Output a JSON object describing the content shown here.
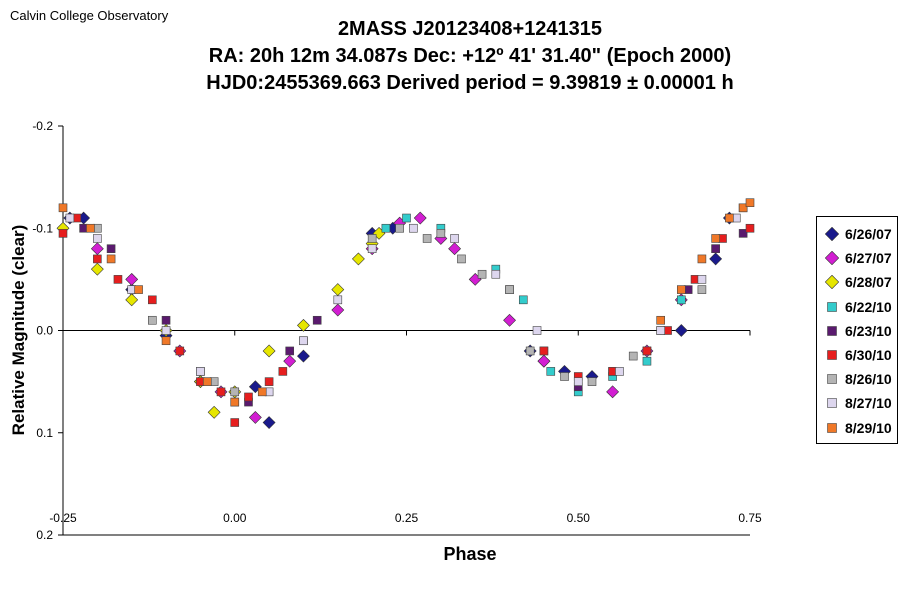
{
  "header": {
    "org": "Calvin College Observatory"
  },
  "chart_data": {
    "type": "scatter",
    "title": "2MASS J20123408+1241315",
    "subtitle_lines": [
      "RA: 20h 12m 34.087s   Dec: +12º 41' 31.40\"  (Epoch 2000)",
      "HJD0:2455369.663    Derived period =  9.39819 ± 0.00001 h"
    ],
    "xlabel": "Phase",
    "ylabel": "Relative Magnitude (clear)",
    "xlim": [
      -0.25,
      0.75
    ],
    "ylim": [
      -0.2,
      0.2
    ],
    "y_inverted": true,
    "x_ticks": [
      "-0.25",
      "0.00",
      "0.25",
      "0.50",
      "0.75"
    ],
    "y_ticks": [
      "-0.2",
      "-0.1",
      "0.0",
      "0.1",
      "0.2"
    ],
    "grid": false,
    "legend_position": "right",
    "model": {
      "mean": 0.0,
      "amplitude": 0.085,
      "min_phase": 0.0
    },
    "series": [
      {
        "name": "6/26/07",
        "color": "#1a1a8c",
        "marker": "diamond",
        "x": [
          -0.24,
          -0.22,
          -0.15,
          -0.1,
          -0.05,
          0.03,
          0.05,
          0.1,
          0.2,
          0.23,
          0.43,
          0.45,
          0.48,
          0.52,
          0.65,
          0.7,
          0.72
        ],
        "y": [
          -0.11,
          -0.11,
          -0.04,
          0.005,
          0.05,
          0.055,
          0.09,
          0.025,
          -0.095,
          -0.1,
          0.02,
          0.03,
          0.04,
          0.045,
          0.0,
          -0.07,
          -0.11
        ]
      },
      {
        "name": "6/27/07",
        "color": "#d21ed2",
        "marker": "diamond",
        "x": [
          -0.2,
          -0.15,
          -0.08,
          -0.02,
          0.03,
          0.08,
          0.15,
          0.2,
          0.24,
          0.27,
          0.3,
          0.32,
          0.35,
          0.4,
          0.45,
          0.55,
          0.6,
          0.65
        ],
        "y": [
          -0.08,
          -0.05,
          0.02,
          0.06,
          0.085,
          0.03,
          -0.02,
          -0.08,
          -0.105,
          -0.11,
          -0.09,
          -0.08,
          -0.05,
          -0.01,
          0.03,
          0.06,
          0.02,
          -0.03
        ]
      },
      {
        "name": "6/28/07",
        "color": "#e6e600",
        "marker": "diamond",
        "x": [
          -0.25,
          -0.2,
          -0.15,
          -0.1,
          -0.05,
          -0.03,
          0.0,
          0.05,
          0.1,
          0.15,
          0.18,
          0.2,
          0.21
        ],
        "y": [
          -0.1,
          -0.06,
          -0.03,
          0.0,
          0.05,
          0.08,
          0.06,
          0.02,
          -0.005,
          -0.04,
          -0.07,
          -0.085,
          -0.095
        ]
      },
      {
        "name": "6/22/10",
        "color": "#33cccc",
        "marker": "square",
        "x": [
          0.22,
          0.25,
          0.3,
          0.38,
          0.42,
          0.46,
          0.5,
          0.55,
          0.6,
          0.65,
          0.7,
          0.74
        ],
        "y": [
          -0.1,
          -0.11,
          -0.1,
          -0.06,
          -0.03,
          0.04,
          0.06,
          0.045,
          0.03,
          -0.03,
          -0.08,
          -0.12
        ]
      },
      {
        "name": "6/23/10",
        "color": "#5a1a6e",
        "marker": "square",
        "x": [
          -0.22,
          -0.18,
          -0.1,
          -0.05,
          0.02,
          0.08,
          0.12,
          0.4,
          0.45,
          0.5,
          0.55,
          0.6,
          0.66,
          0.7,
          0.74
        ],
        "y": [
          -0.1,
          -0.08,
          -0.01,
          0.04,
          0.07,
          0.02,
          -0.01,
          -0.04,
          0.02,
          0.055,
          0.04,
          0.02,
          -0.04,
          -0.08,
          -0.095
        ]
      },
      {
        "name": "6/30/10",
        "color": "#e61e1e",
        "marker": "square",
        "x": [
          -0.25,
          -0.23,
          -0.2,
          -0.17,
          -0.12,
          -0.08,
          -0.05,
          -0.02,
          0.0,
          0.02,
          0.05,
          0.07,
          0.45,
          0.5,
          0.55,
          0.6,
          0.63,
          0.67,
          0.71,
          0.75
        ],
        "y": [
          -0.095,
          -0.11,
          -0.07,
          -0.05,
          -0.03,
          0.02,
          0.05,
          0.06,
          0.09,
          0.065,
          0.05,
          0.04,
          0.02,
          0.045,
          0.04,
          0.02,
          0.0,
          -0.05,
          -0.09,
          -0.1
        ]
      },
      {
        "name": "8/26/10",
        "color": "#b4b4b4",
        "marker": "square",
        "x": [
          -0.2,
          -0.12,
          -0.03,
          0.0,
          0.1,
          0.2,
          0.24,
          0.28,
          0.3,
          0.33,
          0.36,
          0.4,
          0.43,
          0.48,
          0.52,
          0.58,
          0.62,
          0.68
        ],
        "y": [
          -0.1,
          -0.01,
          0.05,
          0.06,
          0.01,
          -0.09,
          -0.1,
          -0.09,
          -0.095,
          -0.07,
          -0.055,
          -0.04,
          0.02,
          0.045,
          0.05,
          0.025,
          0.0,
          -0.04
        ]
      },
      {
        "name": "8/27/10",
        "color": "#ddd6ee",
        "marker": "square",
        "x": [
          -0.24,
          -0.2,
          -0.15,
          -0.1,
          -0.05,
          0.0,
          0.05,
          0.1,
          0.15,
          0.2,
          0.26,
          0.32,
          0.38,
          0.44,
          0.5,
          0.56,
          0.62,
          0.68,
          0.73
        ],
        "y": [
          -0.11,
          -0.09,
          -0.04,
          0.0,
          0.04,
          0.07,
          0.06,
          0.01,
          -0.03,
          -0.08,
          -0.1,
          -0.09,
          -0.055,
          0.0,
          0.05,
          0.04,
          0.0,
          -0.05,
          -0.11
        ]
      },
      {
        "name": "8/29/10",
        "color": "#f07828",
        "marker": "square",
        "x": [
          -0.25,
          -0.21,
          -0.18,
          -0.14,
          -0.1,
          -0.04,
          0.0,
          0.04,
          0.62,
          0.65,
          0.68,
          0.7,
          0.72,
          0.74,
          0.75
        ],
        "y": [
          -0.12,
          -0.1,
          -0.07,
          -0.04,
          0.01,
          0.05,
          0.07,
          0.06,
          -0.01,
          -0.04,
          -0.07,
          -0.09,
          -0.11,
          -0.12,
          -0.125
        ]
      }
    ]
  }
}
